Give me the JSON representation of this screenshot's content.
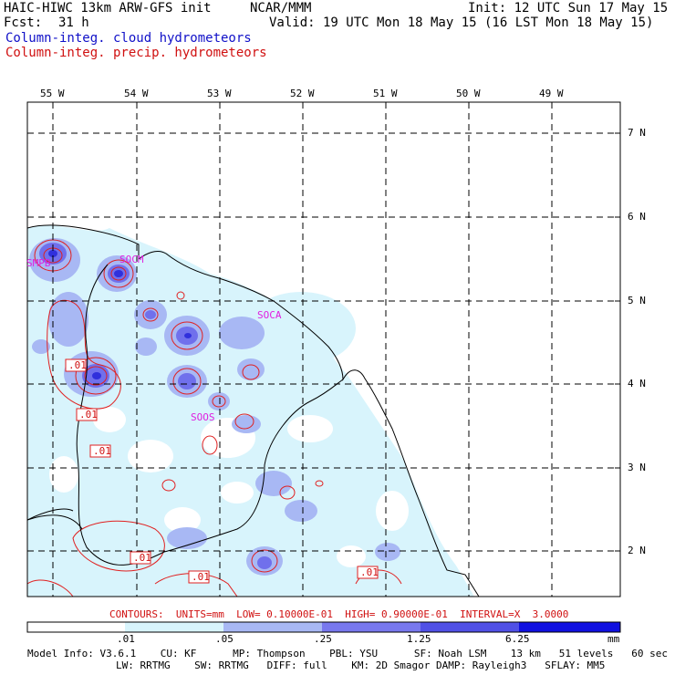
{
  "header": {
    "model_title": "HAIC-HIWC 13km ARW-GFS init",
    "org": "NCAR/MMM",
    "init": "Init: 12 UTC Sun 17 May 15",
    "fcst_label": "Fcst:",
    "fcst_value": "31 h",
    "valid": "Valid: 19 UTC Mon 18 May 15 (16 LST Mon 18 May 15)",
    "field_cloud": "Column-integ. cloud hydrometeors",
    "field_precip": "Column-integ. precip. hydrometeors"
  },
  "map": {
    "lon_labels": [
      "55 W",
      "54 W",
      "53 W",
      "52 W",
      "51 W",
      "50 W",
      "49 W"
    ],
    "lat_labels": [
      "7 N",
      "6 N",
      "5 N",
      "4 N",
      "3 N",
      "2 N"
    ],
    "stations": [
      "SMPB",
      "SOCM",
      "SOCA",
      "SOOS"
    ],
    "contour_labels": [
      ".01",
      ".01",
      ".01",
      ".01",
      ".01",
      ".01"
    ]
  },
  "contours_caption": "CONTOURS:  UNITS=mm  LOW= 0.10000E-01  HIGH= 0.90000E-01  INTERVAL=X  3.0000",
  "colorbar": {
    "ticks": [
      ".01",
      ".05",
      ".25",
      "1.25",
      "6.25"
    ],
    "unit": "mm",
    "colors": [
      "#ffffff",
      "#d8f4fc",
      "#a8b8f4",
      "#7878ee",
      "#5050e6",
      "#1010e0"
    ]
  },
  "model_info": {
    "line1": "Model Info: V3.6.1    CU: KF      MP: Thompson    PBL: YSU      SF: Noah LSM    13 km   51 levels   60 sec",
    "line2": "LW: RRTMG    SW: RRTMG   DIFF: full    KM: 2D Smagor DAMP: Rayleigh3   SFLAY: MM5"
  },
  "colors": {
    "cloud_title": "#1010c8",
    "precip_title": "#d01010",
    "station": "#e020e0",
    "contour": "#e02020"
  }
}
